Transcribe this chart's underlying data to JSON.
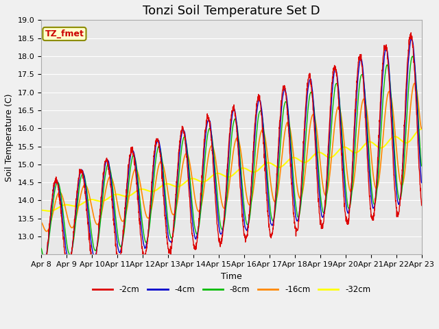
{
  "title": "Tonzi Soil Temperature Set D",
  "xlabel": "Time",
  "ylabel": "Soil Temperature (C)",
  "ylim": [
    12.5,
    19.0
  ],
  "yticks": [
    13.0,
    13.5,
    14.0,
    14.5,
    15.0,
    15.5,
    16.0,
    16.5,
    17.0,
    17.5,
    18.0,
    18.5,
    19.0
  ],
  "xtick_labels": [
    "Apr 8",
    "Apr 9",
    "Apr 10",
    "Apr 11",
    "Apr 12",
    "Apr 13",
    "Apr 14",
    "Apr 15",
    "Apr 16",
    "Apr 17",
    "Apr 18",
    "Apr 19",
    "Apr 20",
    "Apr 21",
    "Apr 22",
    "Apr 23"
  ],
  "legend_label": "TZ_fmet",
  "series": [
    {
      "label": "-2cm",
      "color": "#dd0000"
    },
    {
      "label": "-4cm",
      "color": "#0000cc"
    },
    {
      "label": "-8cm",
      "color": "#00bb00"
    },
    {
      "label": "-16cm",
      "color": "#ff8800"
    },
    {
      "label": "-32cm",
      "color": "#ffff00"
    }
  ],
  "fig_facecolor": "#f0f0f0",
  "ax_facecolor": "#e8e8e8",
  "grid_color": "#ffffff",
  "title_fontsize": 13,
  "axis_fontsize": 9,
  "tick_fontsize": 8
}
